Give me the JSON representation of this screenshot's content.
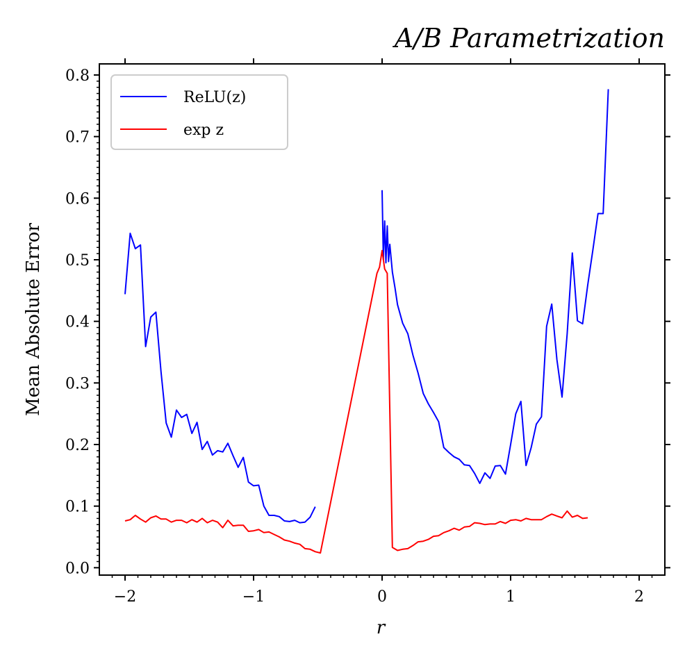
{
  "chart_data": {
    "type": "line",
    "title": "A/B Parametrization",
    "xlabel": "r",
    "ylabel": "Mean Absolute Error",
    "xlim": [
      -2.2,
      2.2
    ],
    "ylim": [
      -0.012,
      0.818
    ],
    "x_ticks": [
      -2,
      -1,
      0,
      1,
      2
    ],
    "x_tick_labels": [
      "−2",
      "−1",
      "0",
      "1",
      "2"
    ],
    "y_ticks": [
      0.0,
      0.1,
      0.2,
      0.3,
      0.4,
      0.5,
      0.6,
      0.7,
      0.8
    ],
    "y_tick_labels": [
      "0.0",
      "0.1",
      "0.2",
      "0.3",
      "0.4",
      "0.5",
      "0.6",
      "0.7",
      "0.8"
    ],
    "grid": false,
    "legend_position": "top-left",
    "series": [
      {
        "name": "ReLU(z)",
        "color": "#0000ff",
        "points": [
          [
            -2.0,
            0.444
          ],
          [
            -1.96,
            0.543
          ],
          [
            -1.92,
            0.518
          ],
          [
            -1.88,
            0.524
          ],
          [
            -1.84,
            0.359
          ],
          [
            -1.8,
            0.407
          ],
          [
            -1.76,
            0.415
          ],
          [
            -1.72,
            0.318
          ],
          [
            -1.68,
            0.235
          ],
          [
            -1.64,
            0.212
          ],
          [
            -1.6,
            0.256
          ],
          [
            -1.56,
            0.244
          ],
          [
            -1.52,
            0.249
          ],
          [
            -1.48,
            0.218
          ],
          [
            -1.44,
            0.236
          ],
          [
            -1.4,
            0.192
          ],
          [
            -1.36,
            0.205
          ],
          [
            -1.32,
            0.183
          ],
          [
            -1.28,
            0.19
          ],
          [
            -1.24,
            0.188
          ],
          [
            -1.2,
            0.202
          ],
          [
            -1.16,
            0.182
          ],
          [
            -1.12,
            0.163
          ],
          [
            -1.08,
            0.179
          ],
          [
            -1.04,
            0.139
          ],
          [
            -1.0,
            0.133
          ],
          [
            -0.96,
            0.134
          ],
          [
            -0.92,
            0.1
          ],
          [
            -0.88,
            0.085
          ],
          [
            -0.84,
            0.085
          ],
          [
            -0.8,
            0.083
          ],
          [
            -0.76,
            0.076
          ],
          [
            -0.72,
            0.075
          ],
          [
            -0.68,
            0.077
          ],
          [
            -0.64,
            0.073
          ],
          [
            -0.6,
            0.074
          ],
          [
            -0.56,
            0.082
          ],
          [
            -0.52,
            0.099
          ]
        ]
      },
      {
        "name": "ReLU(z)",
        "color": "#0000ff",
        "points": [
          [
            0.0,
            0.613
          ],
          [
            0.01,
            0.5
          ],
          [
            0.02,
            0.563
          ],
          [
            0.03,
            0.495
          ],
          [
            0.04,
            0.555
          ],
          [
            0.05,
            0.497
          ],
          [
            0.06,
            0.525
          ],
          [
            0.08,
            0.48
          ],
          [
            0.1,
            0.455
          ],
          [
            0.12,
            0.427
          ],
          [
            0.16,
            0.397
          ],
          [
            0.2,
            0.38
          ],
          [
            0.24,
            0.345
          ],
          [
            0.28,
            0.316
          ],
          [
            0.32,
            0.283
          ],
          [
            0.36,
            0.266
          ],
          [
            0.4,
            0.252
          ],
          [
            0.44,
            0.237
          ],
          [
            0.48,
            0.195
          ],
          [
            0.52,
            0.187
          ],
          [
            0.56,
            0.18
          ],
          [
            0.6,
            0.176
          ],
          [
            0.64,
            0.167
          ],
          [
            0.68,
            0.166
          ],
          [
            0.72,
            0.153
          ],
          [
            0.76,
            0.137
          ],
          [
            0.8,
            0.154
          ],
          [
            0.84,
            0.145
          ],
          [
            0.88,
            0.165
          ],
          [
            0.92,
            0.166
          ],
          [
            0.96,
            0.152
          ],
          [
            1.0,
            0.2
          ],
          [
            1.04,
            0.25
          ],
          [
            1.08,
            0.27
          ],
          [
            1.12,
            0.166
          ],
          [
            1.16,
            0.195
          ],
          [
            1.2,
            0.233
          ],
          [
            1.24,
            0.245
          ],
          [
            1.28,
            0.392
          ],
          [
            1.32,
            0.428
          ],
          [
            1.36,
            0.338
          ],
          [
            1.4,
            0.277
          ],
          [
            1.44,
            0.38
          ],
          [
            1.48,
            0.511
          ],
          [
            1.52,
            0.401
          ],
          [
            1.56,
            0.396
          ],
          [
            1.6,
            0.459
          ],
          [
            1.64,
            0.516
          ],
          [
            1.68,
            0.575
          ],
          [
            1.72,
            0.575
          ],
          [
            1.76,
            0.777
          ]
        ]
      },
      {
        "name": "exp z",
        "color": "#ff0000",
        "points": [
          [
            -2.0,
            0.076
          ],
          [
            -1.96,
            0.078
          ],
          [
            -1.92,
            0.085
          ],
          [
            -1.88,
            0.079
          ],
          [
            -1.84,
            0.074
          ],
          [
            -1.8,
            0.081
          ],
          [
            -1.76,
            0.084
          ],
          [
            -1.72,
            0.079
          ],
          [
            -1.68,
            0.079
          ],
          [
            -1.64,
            0.074
          ],
          [
            -1.6,
            0.077
          ],
          [
            -1.56,
            0.077
          ],
          [
            -1.52,
            0.073
          ],
          [
            -1.48,
            0.078
          ],
          [
            -1.44,
            0.074
          ],
          [
            -1.4,
            0.08
          ],
          [
            -1.36,
            0.073
          ],
          [
            -1.32,
            0.077
          ],
          [
            -1.28,
            0.074
          ],
          [
            -1.24,
            0.065
          ],
          [
            -1.2,
            0.077
          ],
          [
            -1.16,
            0.068
          ],
          [
            -1.12,
            0.069
          ],
          [
            -1.08,
            0.069
          ],
          [
            -1.04,
            0.059
          ],
          [
            -1.0,
            0.06
          ],
          [
            -0.96,
            0.062
          ],
          [
            -0.92,
            0.057
          ],
          [
            -0.88,
            0.058
          ],
          [
            -0.84,
            0.054
          ],
          [
            -0.8,
            0.05
          ],
          [
            -0.76,
            0.045
          ],
          [
            -0.72,
            0.043
          ],
          [
            -0.68,
            0.04
          ],
          [
            -0.64,
            0.038
          ],
          [
            -0.6,
            0.031
          ],
          [
            -0.56,
            0.03
          ],
          [
            -0.52,
            0.026
          ],
          [
            -0.48,
            0.024
          ],
          [
            -0.04,
            0.478
          ],
          [
            -0.02,
            0.488
          ],
          [
            0.0,
            0.515
          ],
          [
            0.02,
            0.485
          ],
          [
            0.04,
            0.478
          ],
          [
            0.08,
            0.033
          ],
          [
            0.12,
            0.028
          ],
          [
            0.16,
            0.03
          ],
          [
            0.2,
            0.031
          ],
          [
            0.24,
            0.036
          ],
          [
            0.28,
            0.042
          ],
          [
            0.32,
            0.043
          ],
          [
            0.36,
            0.046
          ],
          [
            0.4,
            0.051
          ],
          [
            0.44,
            0.052
          ],
          [
            0.48,
            0.057
          ],
          [
            0.52,
            0.06
          ],
          [
            0.56,
            0.064
          ],
          [
            0.6,
            0.061
          ],
          [
            0.64,
            0.066
          ],
          [
            0.68,
            0.067
          ],
          [
            0.72,
            0.073
          ],
          [
            0.76,
            0.072
          ],
          [
            0.8,
            0.07
          ],
          [
            0.84,
            0.071
          ],
          [
            0.88,
            0.071
          ],
          [
            0.92,
            0.075
          ],
          [
            0.96,
            0.072
          ],
          [
            1.0,
            0.077
          ],
          [
            1.04,
            0.078
          ],
          [
            1.08,
            0.076
          ],
          [
            1.12,
            0.08
          ],
          [
            1.16,
            0.078
          ],
          [
            1.2,
            0.078
          ],
          [
            1.24,
            0.078
          ],
          [
            1.28,
            0.083
          ],
          [
            1.32,
            0.087
          ],
          [
            1.36,
            0.084
          ],
          [
            1.4,
            0.081
          ],
          [
            1.44,
            0.092
          ],
          [
            1.48,
            0.082
          ],
          [
            1.52,
            0.085
          ],
          [
            1.56,
            0.08
          ],
          [
            1.6,
            0.081
          ]
        ]
      }
    ],
    "legend": [
      {
        "label": "ReLU(z)",
        "color": "#0000ff"
      },
      {
        "label": "exp z",
        "color": "#ff0000"
      }
    ]
  }
}
